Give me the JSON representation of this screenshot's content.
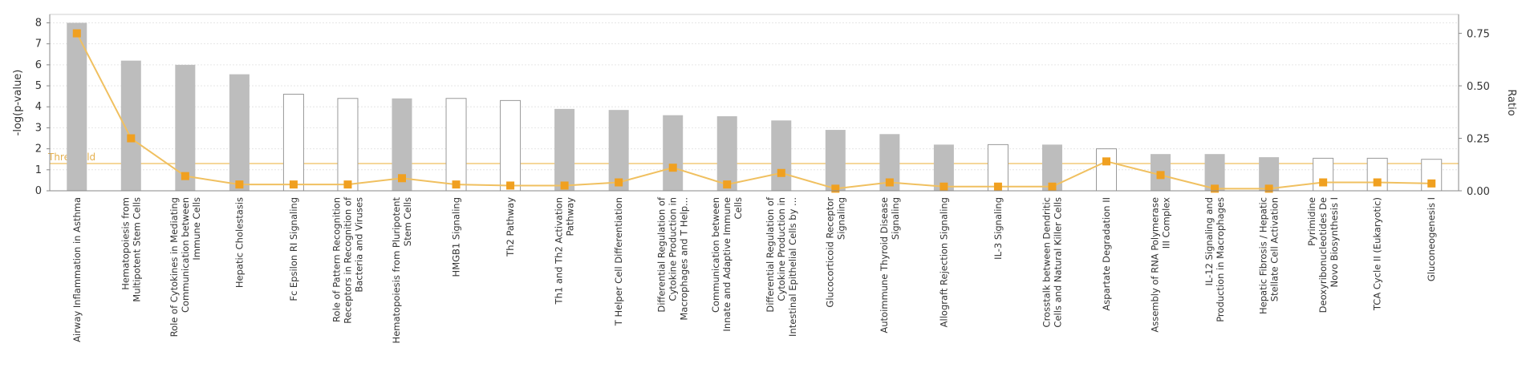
{
  "chart_data": {
    "type": "bar",
    "title": "",
    "ylabel": "-log(p-value)",
    "y2label": "Ratio",
    "ylim": [
      0,
      8.4
    ],
    "y2lim": [
      0,
      0.84
    ],
    "yticks": [
      "0",
      "1",
      "2",
      "3",
      "4",
      "5",
      "6",
      "7",
      "8"
    ],
    "y2ticks": [
      "0.00",
      "0.25",
      "0.50",
      "0.75"
    ],
    "threshold": {
      "label": "Threshold",
      "value": 1.3
    },
    "grid": true,
    "categories": [
      "Airway Inflammation in Asthma",
      "Hematopoiesis from Multipotent Stem Cells",
      "Role of Cytokines in Mediating Communication between Immune Cells",
      "Hepatic Cholestasis",
      "Fc Epsilon RI Signaling",
      "Role of Pattern Recognition Receptors in Recognition of Bacteria and Viruses",
      "Hematopoiesis from Pluripotent Stem Cells",
      "HMGB1 Signaling",
      "Th2 Pathway",
      "Th1 and Th2 Activation Pathway",
      "T Helper Cell Differentiation",
      "Differential Regulation of Cytokine Production in Macrophages and T Help...",
      "Communication between Innate and Adaptive Immune Cells",
      "Differential Regulation of Cytokine Production in Intestinal Epithelial Cells by ...",
      "Glucocorticoid Receptor Signaling",
      "Autoimmune Thyroid Disease Signaling",
      "Allograft Rejection Signaling",
      "IL-3 Signaling",
      "Crosstalk between Dendritic Cells and Natural Killer Cells",
      "Aspartate Degradation II",
      "Assembly of RNA Polymerase III Complex",
      "IL-12 Signaling and Production in Macrophages",
      "Hepatic Fibrosis / Hepatic Stellate Cell Activation",
      "Pyrimidine Deoxyribonucleotides De Novo Biosynthesis I",
      "TCA Cycle II (Eukaryotic)",
      "Gluconeogenesis I"
    ],
    "label_lines": [
      [
        "Airway Inflammation in Asthma"
      ],
      [
        "Hematopoiesis from",
        "Multipotent Stem Cells"
      ],
      [
        "Role of Cytokines in Mediating",
        "Communication between",
        "Immune Cells"
      ],
      [
        "Hepatic Cholestasis"
      ],
      [
        "Fc Epsilon RI Signaling"
      ],
      [
        "Role of Pattern Recognition",
        "Receptors in Recognition of",
        "Bacteria and Viruses"
      ],
      [
        "Hematopoiesis from Pluripotent",
        "Stem Cells"
      ],
      [
        "HMGB1 Signaling"
      ],
      [
        "Th2 Pathway"
      ],
      [
        "Th1 and Th2 Activation",
        "Pathway"
      ],
      [
        "T Helper Cell Differentiation"
      ],
      [
        "Differential Regulation of",
        "Cytokine Production in",
        "Macrophages and T Help..."
      ],
      [
        "Communication between",
        "Innate and Adaptive Immune",
        "Cells"
      ],
      [
        "Differential Regulation of",
        "Cytokine Production in",
        "Intestinal Epithelial Cells by ..."
      ],
      [
        "Glucocorticoid Receptor",
        "Signaling"
      ],
      [
        "Autoimmune Thyroid Disease",
        "Signaling"
      ],
      [
        "Allograft Rejection Signaling"
      ],
      [
        "IL-3 Signaling"
      ],
      [
        "Crosstalk between Dendritic",
        "Cells and Natural Killer Cells"
      ],
      [
        "Aspartate Degradation II"
      ],
      [
        "Assembly of RNA Polymerase",
        "III Complex"
      ],
      [
        "IL-12 Signaling and",
        "Production in Macrophages"
      ],
      [
        "Hepatic Fibrosis / Hepatic",
        "Stellate Cell Activation"
      ],
      [
        "Pyrimidine",
        "Deoxyribonucleotides De",
        "Novo Biosynthesis I"
      ],
      [
        "TCA Cycle II (Eukaryotic)"
      ],
      [
        "Gluconeogenesis I"
      ]
    ],
    "series": [
      {
        "type": "bar",
        "values": [
          8.0,
          6.2,
          6.0,
          5.55,
          4.6,
          4.4,
          4.4,
          4.4,
          4.3,
          3.9,
          3.85,
          3.6,
          3.55,
          3.35,
          2.9,
          2.7,
          2.2,
          2.2,
          2.2,
          2.0,
          1.75,
          1.75,
          1.6,
          1.55,
          1.55,
          1.5
        ],
        "filled": [
          true,
          true,
          true,
          true,
          false,
          false,
          true,
          false,
          false,
          true,
          true,
          true,
          true,
          true,
          true,
          true,
          true,
          false,
          true,
          false,
          true,
          true,
          true,
          false,
          false,
          false
        ]
      },
      {
        "name": "Ratio",
        "type": "line",
        "axis": "right",
        "values": [
          0.75,
          0.25,
          0.07,
          0.03,
          0.03,
          0.03,
          0.06,
          0.03,
          0.025,
          0.025,
          0.04,
          0.11,
          0.03,
          0.085,
          0.01,
          0.04,
          0.02,
          0.02,
          0.02,
          0.14,
          0.075,
          0.01,
          0.01,
          0.04,
          0.04,
          0.035
        ]
      }
    ],
    "colors": {
      "bar_fill": "#bdbdbd",
      "bar_outline": "#999999",
      "line": "#f0c060",
      "marker": "#f0a020",
      "threshold": "#f5d79a",
      "grid": "#e6e6e6",
      "axis": "#888888"
    }
  }
}
